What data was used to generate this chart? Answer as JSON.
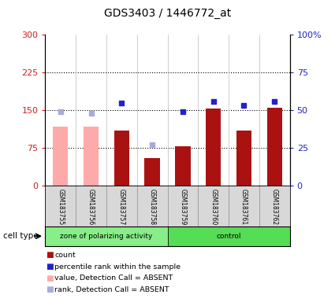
{
  "title": "GDS3403 / 1446772_at",
  "samples": [
    "GSM183755",
    "GSM183756",
    "GSM183757",
    "GSM183758",
    "GSM183759",
    "GSM183760",
    "GSM183761",
    "GSM183762"
  ],
  "count_values": [
    null,
    null,
    110,
    55,
    78,
    153,
    110,
    155
  ],
  "count_absent": [
    118,
    118,
    null,
    null,
    null,
    null,
    null,
    null
  ],
  "percentile_values": [
    null,
    null,
    55,
    null,
    49,
    56,
    53,
    56
  ],
  "percentile_absent": [
    49,
    48,
    null,
    27,
    null,
    null,
    null,
    null
  ],
  "ylim_left": [
    0,
    300
  ],
  "ylim_right": [
    0,
    100
  ],
  "yticks_left": [
    0,
    75,
    150,
    225,
    300
  ],
  "yticks_right": [
    0,
    25,
    50,
    75,
    100
  ],
  "ytick_labels_left": [
    "0",
    "75",
    "150",
    "225",
    "300"
  ],
  "ytick_labels_right": [
    "0",
    "25",
    "50",
    "75",
    "100%"
  ],
  "bar_width": 0.5,
  "color_count": "#aa1111",
  "color_count_absent": "#ffaaaa",
  "color_percentile": "#2222cc",
  "color_percentile_absent": "#aaaadd",
  "group1_color": "#88ee88",
  "group2_color": "#55dd55",
  "plot_bg": "#ffffff",
  "left_label_color": "#cc2222",
  "right_label_color": "#2222cc",
  "legend_items": [
    {
      "label": "count",
      "color": "#aa1111"
    },
    {
      "label": "percentile rank within the sample",
      "color": "#2222cc"
    },
    {
      "label": "value, Detection Call = ABSENT",
      "color": "#ffaaaa"
    },
    {
      "label": "rank, Detection Call = ABSENT",
      "color": "#aaaadd"
    }
  ]
}
